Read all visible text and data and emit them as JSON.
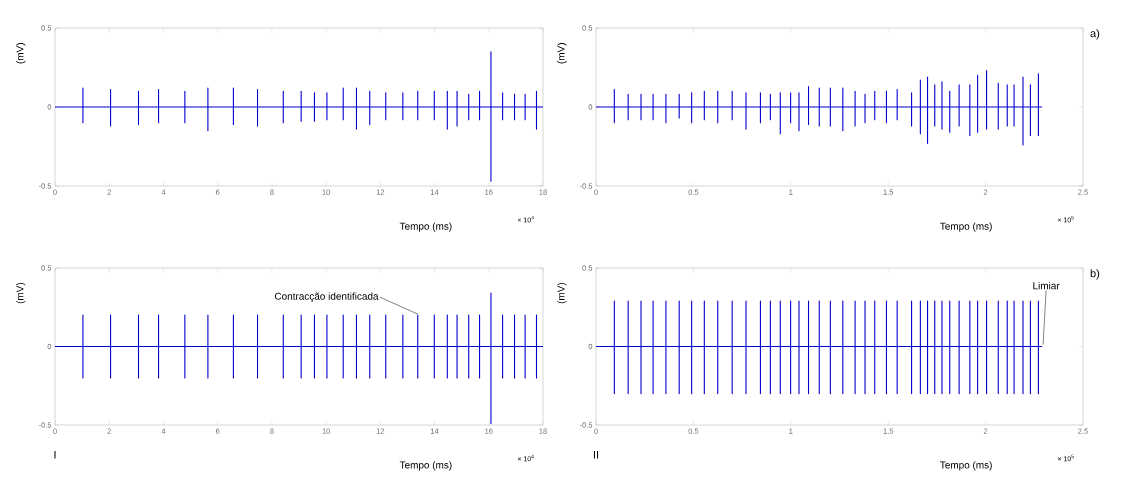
{
  "chart_data": [
    {
      "type": "line",
      "xlabel": "Tempo (ms)",
      "ylabel": "(mV)",
      "xlim": [
        0,
        18
      ],
      "ylim": [
        -0.5,
        0.5
      ],
      "xticks": [
        0,
        2,
        4,
        6,
        8,
        10,
        12,
        14,
        16,
        18
      ],
      "yticks": [
        -0.5,
        0,
        0.5
      ],
      "annotations": [
        "× 10$^{4}$"
      ],
      "series": [
        {
          "color": "#0000cc",
          "x": [
            0,
            1.03,
            1.03,
            1.03,
            1.03,
            2.05,
            2.05,
            2.05,
            2.05,
            3.08,
            3.08,
            3.08,
            3.08,
            3.82,
            3.82,
            3.82,
            3.82,
            4.79,
            4.79,
            4.79,
            4.79,
            5.64,
            5.64,
            5.64,
            5.64,
            6.58,
            6.58,
            6.58,
            6.58,
            7.47,
            7.47,
            7.47,
            7.47,
            8.42,
            8.42,
            8.42,
            8.42,
            9.08,
            9.08,
            9.08,
            9.08,
            9.57,
            9.57,
            9.57,
            9.57,
            10.03,
            10.03,
            10.03,
            10.03,
            10.63,
            10.63,
            10.63,
            10.63,
            11.12,
            11.12,
            11.12,
            11.12,
            11.61,
            11.61,
            11.61,
            11.61,
            12.2,
            12.2,
            12.2,
            12.2,
            12.83,
            12.83,
            12.83,
            12.83,
            13.38,
            13.38,
            13.38,
            13.38,
            13.99,
            13.99,
            13.99,
            13.99,
            14.47,
            14.47,
            14.47,
            14.47,
            14.83,
            14.83,
            14.83,
            14.83,
            15.26,
            15.26,
            15.26,
            15.26,
            15.66,
            15.66,
            15.66,
            15.66,
            16.08,
            16.08,
            16.08,
            16.08,
            16.51,
            16.51,
            16.51,
            16.51,
            16.95,
            16.95,
            16.95,
            16.95,
            17.34,
            17.34,
            17.34,
            17.34,
            17.76,
            17.76,
            17.76,
            17.76,
            18
          ],
          "values": [
            0,
            0,
            0.12,
            -0.1,
            0,
            0,
            0.11,
            -0.12,
            0,
            0,
            0.1,
            -0.11,
            0,
            0,
            0.11,
            -0.1,
            0,
            0,
            0.1,
            -0.1,
            0,
            0,
            0.12,
            -0.15,
            0,
            0,
            0.12,
            -0.11,
            0,
            0,
            0.11,
            -0.12,
            0,
            0,
            0.1,
            -0.1,
            0,
            0,
            0.1,
            -0.09,
            0,
            0,
            0.09,
            -0.09,
            0,
            0,
            0.09,
            -0.08,
            0,
            0,
            0.12,
            -0.08,
            0,
            0,
            0.12,
            -0.14,
            0,
            0,
            0.1,
            -0.11,
            0,
            0,
            0.09,
            -0.08,
            0,
            0,
            0.09,
            -0.08,
            0,
            0,
            0.1,
            -0.08,
            0,
            0,
            0.1,
            -0.08,
            0,
            0,
            0.1,
            -0.14,
            0,
            0,
            0.1,
            -0.12,
            0,
            0,
            0.08,
            -0.08,
            0,
            0,
            0.1,
            -0.08,
            0,
            0,
            0.35,
            -0.47,
            0,
            0,
            0.09,
            -0.08,
            0,
            0,
            0.08,
            -0.08,
            0,
            0,
            0.08,
            -0.08,
            0,
            0,
            0.1,
            -0.14,
            0,
            0
          ]
        }
      ]
    },
    {
      "type": "line",
      "xlabel": "Tempo (ms)",
      "ylabel": "(mV)",
      "xlim": [
        0,
        2.5
      ],
      "ylim": [
        -0.5,
        0.5
      ],
      "xticks": [
        0,
        0.5,
        1,
        1.5,
        2,
        2.5
      ],
      "yticks": [
        -0.5,
        0,
        0.5
      ],
      "annotations": [
        "× 10$^{5}$",
        "a)"
      ],
      "series": [
        {
          "color": "#0000cc",
          "x": [
            0,
            0.094,
            0.094,
            0.094,
            0.094,
            0.165,
            0.165,
            0.165,
            0.165,
            0.231,
            0.231,
            0.231,
            0.231,
            0.293,
            0.293,
            0.293,
            0.293,
            0.359,
            0.359,
            0.359,
            0.359,
            0.427,
            0.427,
            0.427,
            0.427,
            0.491,
            0.491,
            0.491,
            0.491,
            0.556,
            0.556,
            0.556,
            0.556,
            0.625,
            0.625,
            0.625,
            0.625,
            0.699,
            0.699,
            0.699,
            0.699,
            0.77,
            0.77,
            0.77,
            0.77,
            0.844,
            0.844,
            0.844,
            0.844,
            0.895,
            0.895,
            0.895,
            0.895,
            0.946,
            0.946,
            0.946,
            0.946,
            0.999,
            0.999,
            0.999,
            0.999,
            1.042,
            1.042,
            1.042,
            1.042,
            1.091,
            1.091,
            1.091,
            1.091,
            1.146,
            1.146,
            1.146,
            1.146,
            1.203,
            1.203,
            1.203,
            1.203,
            1.267,
            1.267,
            1.267,
            1.267,
            1.33,
            1.33,
            1.33,
            1.33,
            1.381,
            1.381,
            1.381,
            1.381,
            1.431,
            1.431,
            1.431,
            1.431,
            1.491,
            1.491,
            1.491,
            1.491,
            1.546,
            1.546,
            1.546,
            1.546,
            1.62,
            1.62,
            1.62,
            1.62,
            1.665,
            1.665,
            1.665,
            1.665,
            1.702,
            1.702,
            1.702,
            1.702,
            1.739,
            1.739,
            1.739,
            1.739,
            1.776,
            1.776,
            1.776,
            1.776,
            1.816,
            1.816,
            1.816,
            1.816,
            1.864,
            1.864,
            1.864,
            1.864,
            1.919,
            1.919,
            1.919,
            1.919,
            1.959,
            1.959,
            1.959,
            1.959,
            2.005,
            2.005,
            2.005,
            2.005,
            2.065,
            2.065,
            2.065,
            2.065,
            2.111,
            2.111,
            2.111,
            2.111,
            2.146,
            2.146,
            2.146,
            2.146,
            2.192,
            2.192,
            2.192,
            2.192,
            2.23,
            2.23,
            2.23,
            2.23,
            2.271,
            2.271,
            2.271,
            2.271,
            2.29
          ],
          "values": [
            0,
            0,
            0.11,
            -0.1,
            0,
            0,
            0.08,
            -0.08,
            0,
            0,
            0.08,
            -0.08,
            0,
            0,
            0.08,
            -0.08,
            0,
            0,
            0.08,
            -0.1,
            0,
            0,
            0.08,
            -0.07,
            0,
            0,
            0.09,
            -0.1,
            0,
            0,
            0.1,
            -0.08,
            0,
            0,
            0.1,
            -0.1,
            0,
            0,
            0.1,
            -0.08,
            0,
            0,
            0.09,
            -0.14,
            0,
            0,
            0.09,
            -0.1,
            0,
            0,
            0.08,
            -0.08,
            0,
            0,
            0.09,
            -0.17,
            0,
            0,
            0.09,
            -0.1,
            0,
            0,
            0.09,
            -0.15,
            0,
            0,
            0.13,
            -0.11,
            0,
            0,
            0.12,
            -0.12,
            0,
            0,
            0.12,
            -0.12,
            0,
            0,
            0.12,
            -0.15,
            0,
            0,
            0.1,
            -0.12,
            0,
            0,
            0.08,
            -0.1,
            0,
            0,
            0.1,
            -0.08,
            0,
            0,
            0.1,
            -0.1,
            0,
            0,
            0.11,
            -0.08,
            0,
            0,
            0.09,
            -0.12,
            0,
            0,
            0.17,
            -0.17,
            0,
            0,
            0.19,
            -0.23,
            0,
            0,
            0.14,
            -0.12,
            0,
            0,
            0.16,
            -0.14,
            0,
            0,
            0.1,
            -0.16,
            0,
            0,
            0.14,
            -0.12,
            0,
            0,
            0.14,
            -0.18,
            0,
            0,
            0.2,
            -0.16,
            0,
            0,
            0.23,
            -0.14,
            0,
            0,
            0.15,
            -0.14,
            0,
            0,
            0.14,
            -0.12,
            0,
            0,
            0.14,
            -0.12,
            0,
            0,
            0.19,
            -0.24,
            0,
            0,
            0.14,
            -0.18,
            0,
            0,
            0.21,
            -0.18,
            0,
            0
          ]
        }
      ]
    },
    {
      "type": "line",
      "xlabel": "Tempo (ms)",
      "ylabel": "(mV)",
      "xlim": [
        0,
        18
      ],
      "ylim": [
        -0.5,
        0.5
      ],
      "xticks": [
        0,
        2,
        4,
        6,
        8,
        10,
        12,
        14,
        16,
        18
      ],
      "yticks": [
        -0.5,
        0,
        0.5
      ],
      "annotations": [
        "× 10$^{4}$",
        "I",
        {
          "text": "Contracção identificada",
          "x": 13.38,
          "y": 0.2
        }
      ],
      "series": [
        {
          "color": "#0000cc",
          "x": [
            0,
            1.03,
            1.03,
            1.03,
            1.03,
            2.05,
            2.05,
            2.05,
            2.05,
            3.08,
            3.08,
            3.08,
            3.08,
            3.82,
            3.82,
            3.82,
            3.82,
            4.79,
            4.79,
            4.79,
            4.79,
            5.64,
            5.64,
            5.64,
            5.64,
            6.58,
            6.58,
            6.58,
            6.58,
            7.47,
            7.47,
            7.47,
            7.47,
            8.42,
            8.42,
            8.42,
            8.42,
            9.08,
            9.08,
            9.08,
            9.08,
            9.57,
            9.57,
            9.57,
            9.57,
            10.03,
            10.03,
            10.03,
            10.03,
            10.63,
            10.63,
            10.63,
            10.63,
            11.12,
            11.12,
            11.12,
            11.12,
            11.61,
            11.61,
            11.61,
            11.61,
            12.2,
            12.2,
            12.2,
            12.2,
            12.83,
            12.83,
            12.83,
            12.83,
            13.38,
            13.38,
            13.38,
            13.38,
            13.99,
            13.99,
            13.99,
            13.99,
            14.47,
            14.47,
            14.47,
            14.47,
            14.83,
            14.83,
            14.83,
            14.83,
            15.26,
            15.26,
            15.26,
            15.26,
            15.66,
            15.66,
            15.66,
            15.66,
            16.08,
            16.08,
            16.08,
            16.08,
            16.51,
            16.51,
            16.51,
            16.51,
            16.95,
            16.95,
            16.95,
            16.95,
            17.34,
            17.34,
            17.34,
            17.34,
            17.76,
            17.76,
            17.76,
            17.76,
            18
          ],
          "values": [
            0,
            0,
            0.2,
            -0.2,
            0,
            0,
            0.2,
            -0.2,
            0,
            0,
            0.2,
            -0.2,
            0,
            0,
            0.2,
            -0.2,
            0,
            0,
            0.2,
            -0.2,
            0,
            0,
            0.2,
            -0.2,
            0,
            0,
            0.2,
            -0.2,
            0,
            0,
            0.2,
            -0.2,
            0,
            0,
            0.2,
            -0.2,
            0,
            0,
            0.2,
            -0.2,
            0,
            0,
            0.2,
            -0.2,
            0,
            0,
            0.2,
            -0.2,
            0,
            0,
            0.2,
            -0.2,
            0,
            0,
            0.2,
            -0.2,
            0,
            0,
            0.2,
            -0.2,
            0,
            0,
            0.2,
            -0.2,
            0,
            0,
            0.2,
            -0.2,
            0,
            0,
            0.2,
            -0.2,
            0,
            0,
            0.2,
            -0.2,
            0,
            0,
            0.2,
            -0.2,
            0,
            0,
            0.2,
            -0.2,
            0,
            0,
            0.2,
            -0.2,
            0,
            0,
            0.2,
            -0.2,
            0,
            0,
            0.34,
            -0.49,
            0,
            0,
            0.2,
            -0.2,
            0,
            0,
            0.2,
            -0.2,
            0,
            0,
            0.2,
            -0.2,
            0,
            0,
            0.2,
            -0.2,
            0,
            0
          ]
        }
      ]
    },
    {
      "type": "line",
      "xlabel": "Tempo (ms)",
      "ylabel": "(mV)",
      "xlim": [
        0,
        2.5
      ],
      "ylim": [
        -0.5,
        0.5
      ],
      "xticks": [
        0,
        0.5,
        1,
        1.5,
        2,
        2.5
      ],
      "yticks": [
        -0.5,
        0,
        0.5
      ],
      "annotations": [
        "× 10$^{5}$",
        "II",
        "b)",
        {
          "text": "Limiar",
          "x": 2.29,
          "y": 0
        }
      ],
      "series": [
        {
          "color": "#0000cc",
          "x": [
            0,
            0.094,
            0.094,
            0.094,
            0.094,
            0.165,
            0.165,
            0.165,
            0.165,
            0.231,
            0.231,
            0.231,
            0.231,
            0.293,
            0.293,
            0.293,
            0.293,
            0.359,
            0.359,
            0.359,
            0.359,
            0.427,
            0.427,
            0.427,
            0.427,
            0.491,
            0.491,
            0.491,
            0.491,
            0.556,
            0.556,
            0.556,
            0.556,
            0.625,
            0.625,
            0.625,
            0.625,
            0.699,
            0.699,
            0.699,
            0.699,
            0.77,
            0.77,
            0.77,
            0.77,
            0.844,
            0.844,
            0.844,
            0.844,
            0.895,
            0.895,
            0.895,
            0.895,
            0.946,
            0.946,
            0.946,
            0.946,
            0.999,
            0.999,
            0.999,
            0.999,
            1.042,
            1.042,
            1.042,
            1.042,
            1.091,
            1.091,
            1.091,
            1.091,
            1.146,
            1.146,
            1.146,
            1.146,
            1.203,
            1.203,
            1.203,
            1.203,
            1.267,
            1.267,
            1.267,
            1.267,
            1.33,
            1.33,
            1.33,
            1.33,
            1.381,
            1.381,
            1.381,
            1.381,
            1.431,
            1.431,
            1.431,
            1.431,
            1.491,
            1.491,
            1.491,
            1.491,
            1.546,
            1.546,
            1.546,
            1.546,
            1.62,
            1.62,
            1.62,
            1.62,
            1.665,
            1.665,
            1.665,
            1.665,
            1.702,
            1.702,
            1.702,
            1.702,
            1.739,
            1.739,
            1.739,
            1.739,
            1.776,
            1.776,
            1.776,
            1.776,
            1.816,
            1.816,
            1.816,
            1.816,
            1.864,
            1.864,
            1.864,
            1.864,
            1.919,
            1.919,
            1.919,
            1.919,
            1.959,
            1.959,
            1.959,
            1.959,
            2.005,
            2.005,
            2.005,
            2.005,
            2.065,
            2.065,
            2.065,
            2.065,
            2.111,
            2.111,
            2.111,
            2.111,
            2.146,
            2.146,
            2.146,
            2.146,
            2.192,
            2.192,
            2.192,
            2.192,
            2.23,
            2.23,
            2.23,
            2.23,
            2.271,
            2.271,
            2.271,
            2.271,
            2.29
          ],
          "values": [
            0,
            0,
            0.29,
            -0.3,
            0,
            0,
            0.29,
            -0.3,
            0,
            0,
            0.29,
            -0.3,
            0,
            0,
            0.29,
            -0.3,
            0,
            0,
            0.29,
            -0.3,
            0,
            0,
            0.29,
            -0.3,
            0,
            0,
            0.29,
            -0.3,
            0,
            0,
            0.29,
            -0.3,
            0,
            0,
            0.29,
            -0.3,
            0,
            0,
            0.29,
            -0.3,
            0,
            0,
            0.29,
            -0.3,
            0,
            0,
            0.29,
            -0.3,
            0,
            0,
            0.29,
            -0.3,
            0,
            0,
            0.29,
            -0.3,
            0,
            0,
            0.29,
            -0.3,
            0,
            0,
            0.29,
            -0.3,
            0,
            0,
            0.29,
            -0.3,
            0,
            0,
            0.29,
            -0.3,
            0,
            0,
            0.29,
            -0.3,
            0,
            0,
            0.29,
            -0.3,
            0,
            0,
            0.29,
            -0.3,
            0,
            0,
            0.29,
            -0.3,
            0,
            0,
            0.29,
            -0.3,
            0,
            0,
            0.29,
            -0.3,
            0,
            0,
            0.29,
            -0.3,
            0,
            0,
            0.29,
            -0.3,
            0,
            0,
            0.29,
            -0.3,
            0,
            0,
            0.29,
            -0.3,
            0,
            0,
            0.29,
            -0.3,
            0,
            0,
            0.29,
            -0.3,
            0,
            0,
            0.29,
            -0.3,
            0,
            0,
            0.29,
            -0.3,
            0,
            0,
            0.29,
            -0.3,
            0,
            0,
            0.29,
            -0.3,
            0,
            0,
            0.29,
            -0.3,
            0,
            0,
            0.29,
            -0.3,
            0,
            0,
            0.29,
            -0.3,
            0,
            0,
            0.29,
            -0.3,
            0,
            0,
            0.29,
            -0.3,
            0,
            0,
            0.29,
            -0.3,
            0,
            0,
            0.29,
            -0.3,
            0,
            0
          ]
        }
      ]
    }
  ]
}
